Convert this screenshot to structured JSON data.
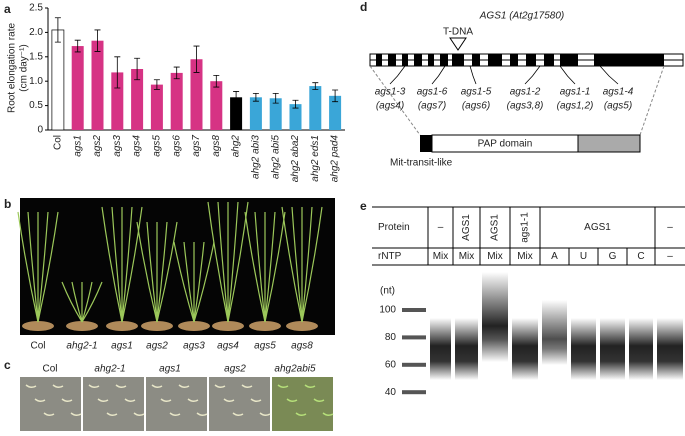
{
  "chart_data": {
    "type": "bar",
    "ylabel": [
      "Root elongation rate",
      "(cm day⁻¹)"
    ],
    "categories": [
      "Col",
      "ags1",
      "ags2",
      "ags3",
      "ags4",
      "ags5",
      "ags6",
      "ags7",
      "ags8",
      "ahg2",
      "ahg2 abi3",
      "ahg2 abi5",
      "ahg2 aba2",
      "ahg2 eds1",
      "ahg2 pad4"
    ],
    "values": [
      2.05,
      1.72,
      1.83,
      1.18,
      1.25,
      0.93,
      1.17,
      1.45,
      1.0,
      0.67,
      0.67,
      0.65,
      0.53,
      0.9,
      0.7
    ],
    "errors": [
      0.25,
      0.12,
      0.22,
      0.32,
      0.22,
      0.1,
      0.12,
      0.27,
      0.12,
      0.12,
      0.08,
      0.1,
      0.08,
      0.07,
      0.12
    ],
    "colors": [
      "#ffffff",
      "#d63384",
      "#d63384",
      "#d63384",
      "#d63384",
      "#d63384",
      "#d63384",
      "#d63384",
      "#d63384",
      "#000000",
      "#3aa6d8",
      "#3aa6d8",
      "#3aa6d8",
      "#3aa6d8",
      "#3aa6d8"
    ],
    "ylim": [
      0,
      2.5
    ],
    "yticks": [
      0,
      0.5,
      {
        "value": 1,
        "label": "1.0"
      },
      1.5,
      {
        "value": 2,
        "label": "2.0"
      },
      2.5
    ]
  },
  "panel_labels": [
    "a",
    "b",
    "c",
    "d",
    "e"
  ],
  "panel_b": {
    "labels": [
      "Col",
      "ahg2-1",
      "ags1",
      "ags2",
      "ags3",
      "ags4",
      "ags5",
      "ags8"
    ]
  },
  "panel_c": {
    "labels": [
      "Col",
      "ahg2-1",
      "ags1",
      "ags2",
      "ahg2abi5"
    ]
  },
  "panel_d": {
    "title": "AGS1 (At2g17580)",
    "tdna": "T-DNA",
    "alleles": [
      [
        "ags1-3",
        "(ags4)"
      ],
      [
        "ags1-6",
        "(ags7)"
      ],
      [
        "ags1-5",
        "(ags6)"
      ],
      [
        "ags1-2",
        "(ags3,8)"
      ],
      [
        "ags1-1",
        "(ags1,2)"
      ],
      [
        "ags1-4",
        "(ags5)"
      ]
    ],
    "domain": "PAP domain",
    "transit": "Mit-transit-like"
  },
  "panel_e": {
    "protein_row": [
      "Protein",
      "–",
      "AGS1",
      "AGS1",
      "ags1-1",
      "AGS1",
      "–"
    ],
    "rntp_row": [
      "rNTP",
      "Mix",
      "Mix",
      "Mix",
      "Mix",
      "A",
      "U",
      "G",
      "C",
      "–"
    ],
    "unit": "(nt)",
    "ladder": [
      100,
      80,
      60,
      40
    ]
  }
}
